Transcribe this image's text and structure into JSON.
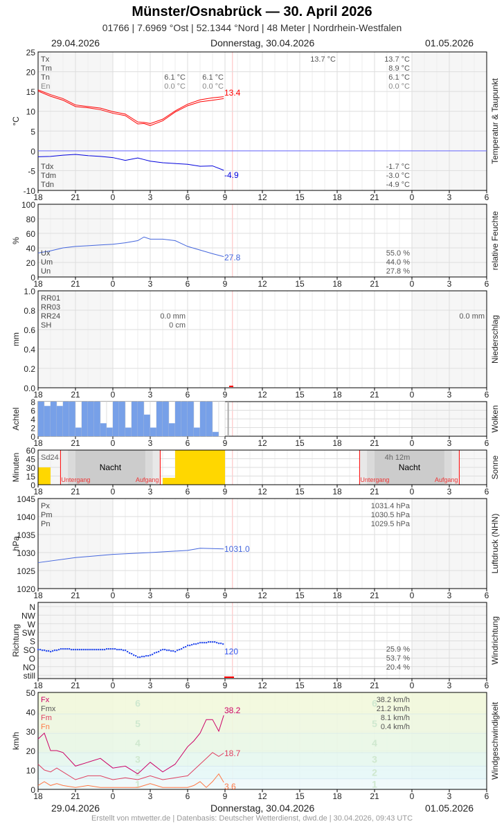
{
  "header": {
    "title": "Münster/Osnabrück  —  30. April 2026",
    "subtitle": "01766  |  7.6969 °Ost  |  52.1344 °Nord  |  48 Meter  |  Nordrhein-Westfalen"
  },
  "dates": {
    "left": "29.04.2026",
    "center": "Donnerstag, 30.04.2026",
    "right": "01.05.2026"
  },
  "footer": "Erstellt von mtwetter.de | Datenbasis: Deutscher Wetterdienst, dwd.de | 30.04.2026, 09:43 UTC",
  "colors": {
    "temp": "#ff0000",
    "dew": "#0000dd",
    "humidity": "#4466dd",
    "cloud": "#77a0e8",
    "sun": "#ffd700",
    "pressure": "#4466dd",
    "wind_dir": "#3355ee",
    "fx": "#cc0066",
    "fm": "#e04060",
    "fn": "#ff7744"
  },
  "chart_data": [
    {
      "type": "line",
      "panel": "Temperatur & Taupunkt",
      "ylabel": "°C",
      "ylim": [
        -10,
        25
      ],
      "yticks": [
        25,
        20,
        15,
        10,
        5,
        0,
        -5,
        -10
      ],
      "x_ticks": [
        "18",
        "21",
        "0",
        "3",
        "6",
        "9",
        "12",
        "15",
        "18",
        "21",
        "0",
        "3",
        "6"
      ],
      "labels": {
        "Tx": "Tx",
        "Tm": "Tm",
        "Tn": "Tn",
        "En": "En",
        "Tdx": "Tdx",
        "Tdm": "Tdm",
        "Tdn": "Tdn"
      },
      "stats": {
        "day1_tx": "13.7 °C",
        "sum_tx": "13.7 °C",
        "sum_tm": "8.9 °C",
        "sum_tn": "6.1 °C",
        "sum_en": "0.0 °C",
        "night_tn_a": "6.1 °C",
        "night_tn_b": "6.1 °C",
        "night_en_a": "0.0 °C",
        "night_en_b": "0.0 °C",
        "tdx": "-1.7 °C",
        "tdm": "-3.0 °C",
        "tdn": "-4.9 °C"
      },
      "last_temp": "13.4",
      "last_dew": "-4.9",
      "x_hours": [
        0,
        1,
        2,
        3,
        4,
        5,
        6,
        7,
        8,
        8.5,
        9,
        10,
        11,
        12,
        13,
        14,
        14.9
      ],
      "series": [
        {
          "name": "Tx",
          "values": [
            15.4,
            14.2,
            13.2,
            11.6,
            11.2,
            10.8,
            9.9,
            9.3,
            7.3,
            7.2,
            6.9,
            8.0,
            10.1,
            11.8,
            12.9,
            13.4,
            13.7
          ]
        },
        {
          "name": "Tn",
          "values": [
            15.1,
            13.8,
            12.8,
            11.2,
            10.9,
            10.4,
            9.5,
            8.9,
            6.8,
            6.9,
            6.4,
            7.6,
            9.8,
            11.4,
            12.4,
            12.8,
            13.2
          ]
        },
        {
          "name": "Td",
          "values": [
            -1.5,
            -1.4,
            -1.1,
            -0.9,
            -1.2,
            -1.4,
            -1.7,
            -2.4,
            -1.8,
            -2.2,
            -2.6,
            -3.0,
            -3.2,
            -3.4,
            -3.9,
            -3.8,
            -4.9
          ]
        }
      ]
    },
    {
      "type": "line",
      "panel": "relative Feuchte",
      "ylabel": "%",
      "ylim": [
        0,
        100
      ],
      "yticks": [
        100,
        80,
        60,
        40,
        20,
        0
      ],
      "labels": {
        "Ux": "Ux",
        "Um": "Um",
        "Un": "Un"
      },
      "stats": {
        "ux": "55.0 %",
        "um": "44.0 %",
        "un": "27.8 %"
      },
      "last": "27.8",
      "x_hours": [
        0,
        1,
        2,
        3,
        4,
        5,
        6,
        7,
        8,
        8.5,
        9,
        10,
        11,
        12,
        13,
        14,
        14.9
      ],
      "values": [
        33,
        36,
        40,
        42,
        43,
        44,
        45,
        47,
        50,
        55,
        52,
        52,
        50,
        42,
        37,
        32,
        28
      ]
    },
    {
      "type": "bar",
      "panel": "Niederschlag",
      "ylabel": "mm",
      "ylim": [
        0,
        1.0
      ],
      "yticks": [
        "1.0",
        "0.8",
        "0.6",
        "0.4",
        "0.2",
        "0.0"
      ],
      "labels": {
        "RR01": "RR01",
        "RR03": "RR03",
        "RR24": "RR24",
        "SH": "SH"
      },
      "stats": {
        "rr24": "0.0 mm",
        "sh": "0 cm",
        "rr24_next": "0.0 mm"
      },
      "values": []
    },
    {
      "type": "bar",
      "panel": "Wolken",
      "ylabel": "Achtel",
      "ylim": [
        0,
        8
      ],
      "yticks": [
        8,
        6,
        4,
        2,
        0
      ],
      "x_hours_step": 0.5,
      "values": [
        8,
        7,
        8,
        7,
        8,
        8,
        2,
        8,
        8,
        8,
        3,
        2,
        8,
        8,
        2,
        8,
        8,
        5,
        2,
        8,
        8,
        3,
        8,
        8,
        8,
        2,
        8,
        8,
        1,
        0
      ]
    },
    {
      "type": "bar",
      "panel": "Sonne",
      "ylabel": "Minuten",
      "ylim": [
        0,
        60
      ],
      "yticks": [
        60,
        45,
        30,
        15,
        0
      ],
      "labels": {
        "sd24": "Sd24",
        "night": "Nacht",
        "sunset": "Untergang",
        "sunrise": "Aufgang",
        "sd24_value": "4h 12m"
      },
      "bars": [
        {
          "from": 0,
          "to": 1,
          "value": 30
        },
        {
          "from": 10,
          "to": 11,
          "value": 12
        },
        {
          "from": 11,
          "to": 15,
          "value": 60
        }
      ],
      "sunset_hours": [
        1.8,
        25.8
      ],
      "sunrise_hours": [
        9.8,
        33.8
      ]
    },
    {
      "type": "line",
      "panel": "Luftdruck (NHN)",
      "ylabel": "hPa",
      "ylim": [
        1020,
        1045
      ],
      "yticks": [
        1045,
        1040,
        1035,
        1030,
        1025,
        1020
      ],
      "labels": {
        "Px": "Px",
        "Pm": "Pm",
        "Pn": "Pn"
      },
      "stats": {
        "px": "1031.4 hPa",
        "pm": "1030.5 hPa",
        "pn": "1029.5 hPa"
      },
      "last": "1031.0",
      "x_hours": [
        0,
        3,
        6,
        9,
        12,
        13,
        14,
        14.9
      ],
      "values": [
        1027.2,
        1028.6,
        1029.5,
        1030.0,
        1030.6,
        1031.2,
        1031.1,
        1031.0
      ]
    },
    {
      "type": "scatter",
      "panel": "Windrichtung",
      "ylabel": "Richtung",
      "yticks": [
        "N",
        "NW",
        "W",
        "SW",
        "S",
        "SO",
        "O",
        "NO",
        "still"
      ],
      "stats": {
        "a": "25.9 %",
        "b": "53.7 %",
        "c": "20.4 %"
      },
      "last": "120",
      "x_hours": [
        0,
        1,
        2,
        3,
        4,
        5,
        6,
        7,
        8,
        9,
        10,
        11,
        12,
        13,
        14,
        14.9
      ],
      "values": [
        90,
        80,
        95,
        90,
        90,
        90,
        95,
        85,
        50,
        60,
        90,
        80,
        110,
        125,
        130,
        120
      ]
    },
    {
      "type": "line",
      "panel": "Windgeschwindigkeit",
      "ylabel": "km/h",
      "ylim": [
        0,
        50
      ],
      "yticks": [
        50,
        40,
        30,
        20,
        10,
        0
      ],
      "labels": {
        "Fx": "Fx",
        "Fmx": "Fmx",
        "Fm": "Fm",
        "Fn": "Fn"
      },
      "stats": {
        "fx": "38.2 km/h",
        "fmx": "21.2 km/h",
        "fm": "8.1 km/h",
        "fn": "0.4 km/h"
      },
      "last_fx": "38.2",
      "last_fm": "18.7",
      "last_fn": "3.6",
      "bft": [
        "1",
        "2",
        "3",
        "4",
        "5",
        "6"
      ],
      "x_hours": [
        0,
        0.5,
        1,
        1.5,
        2,
        3,
        4,
        5,
        6,
        7,
        8,
        9,
        10,
        11,
        12,
        12.5,
        13,
        13.5,
        14,
        14.5,
        14.9
      ],
      "series": [
        {
          "name": "Fx",
          "values": [
            26,
            29,
            20,
            20,
            19,
            12,
            14,
            16,
            11,
            12,
            8,
            14,
            9,
            13,
            22,
            25,
            29,
            36,
            36,
            30,
            38.2
          ]
        },
        {
          "name": "Fm",
          "values": [
            13,
            10,
            9,
            11,
            9,
            5,
            7,
            7,
            5,
            6,
            5,
            7,
            5,
            6,
            7,
            10,
            13,
            16,
            19,
            17,
            18.7
          ]
        },
        {
          "name": "Fn",
          "values": [
            2,
            4,
            2,
            3,
            2,
            1,
            2,
            1,
            1,
            1,
            1,
            3,
            1,
            1,
            1,
            2,
            4,
            1,
            4,
            8,
            3.6
          ]
        }
      ]
    }
  ]
}
